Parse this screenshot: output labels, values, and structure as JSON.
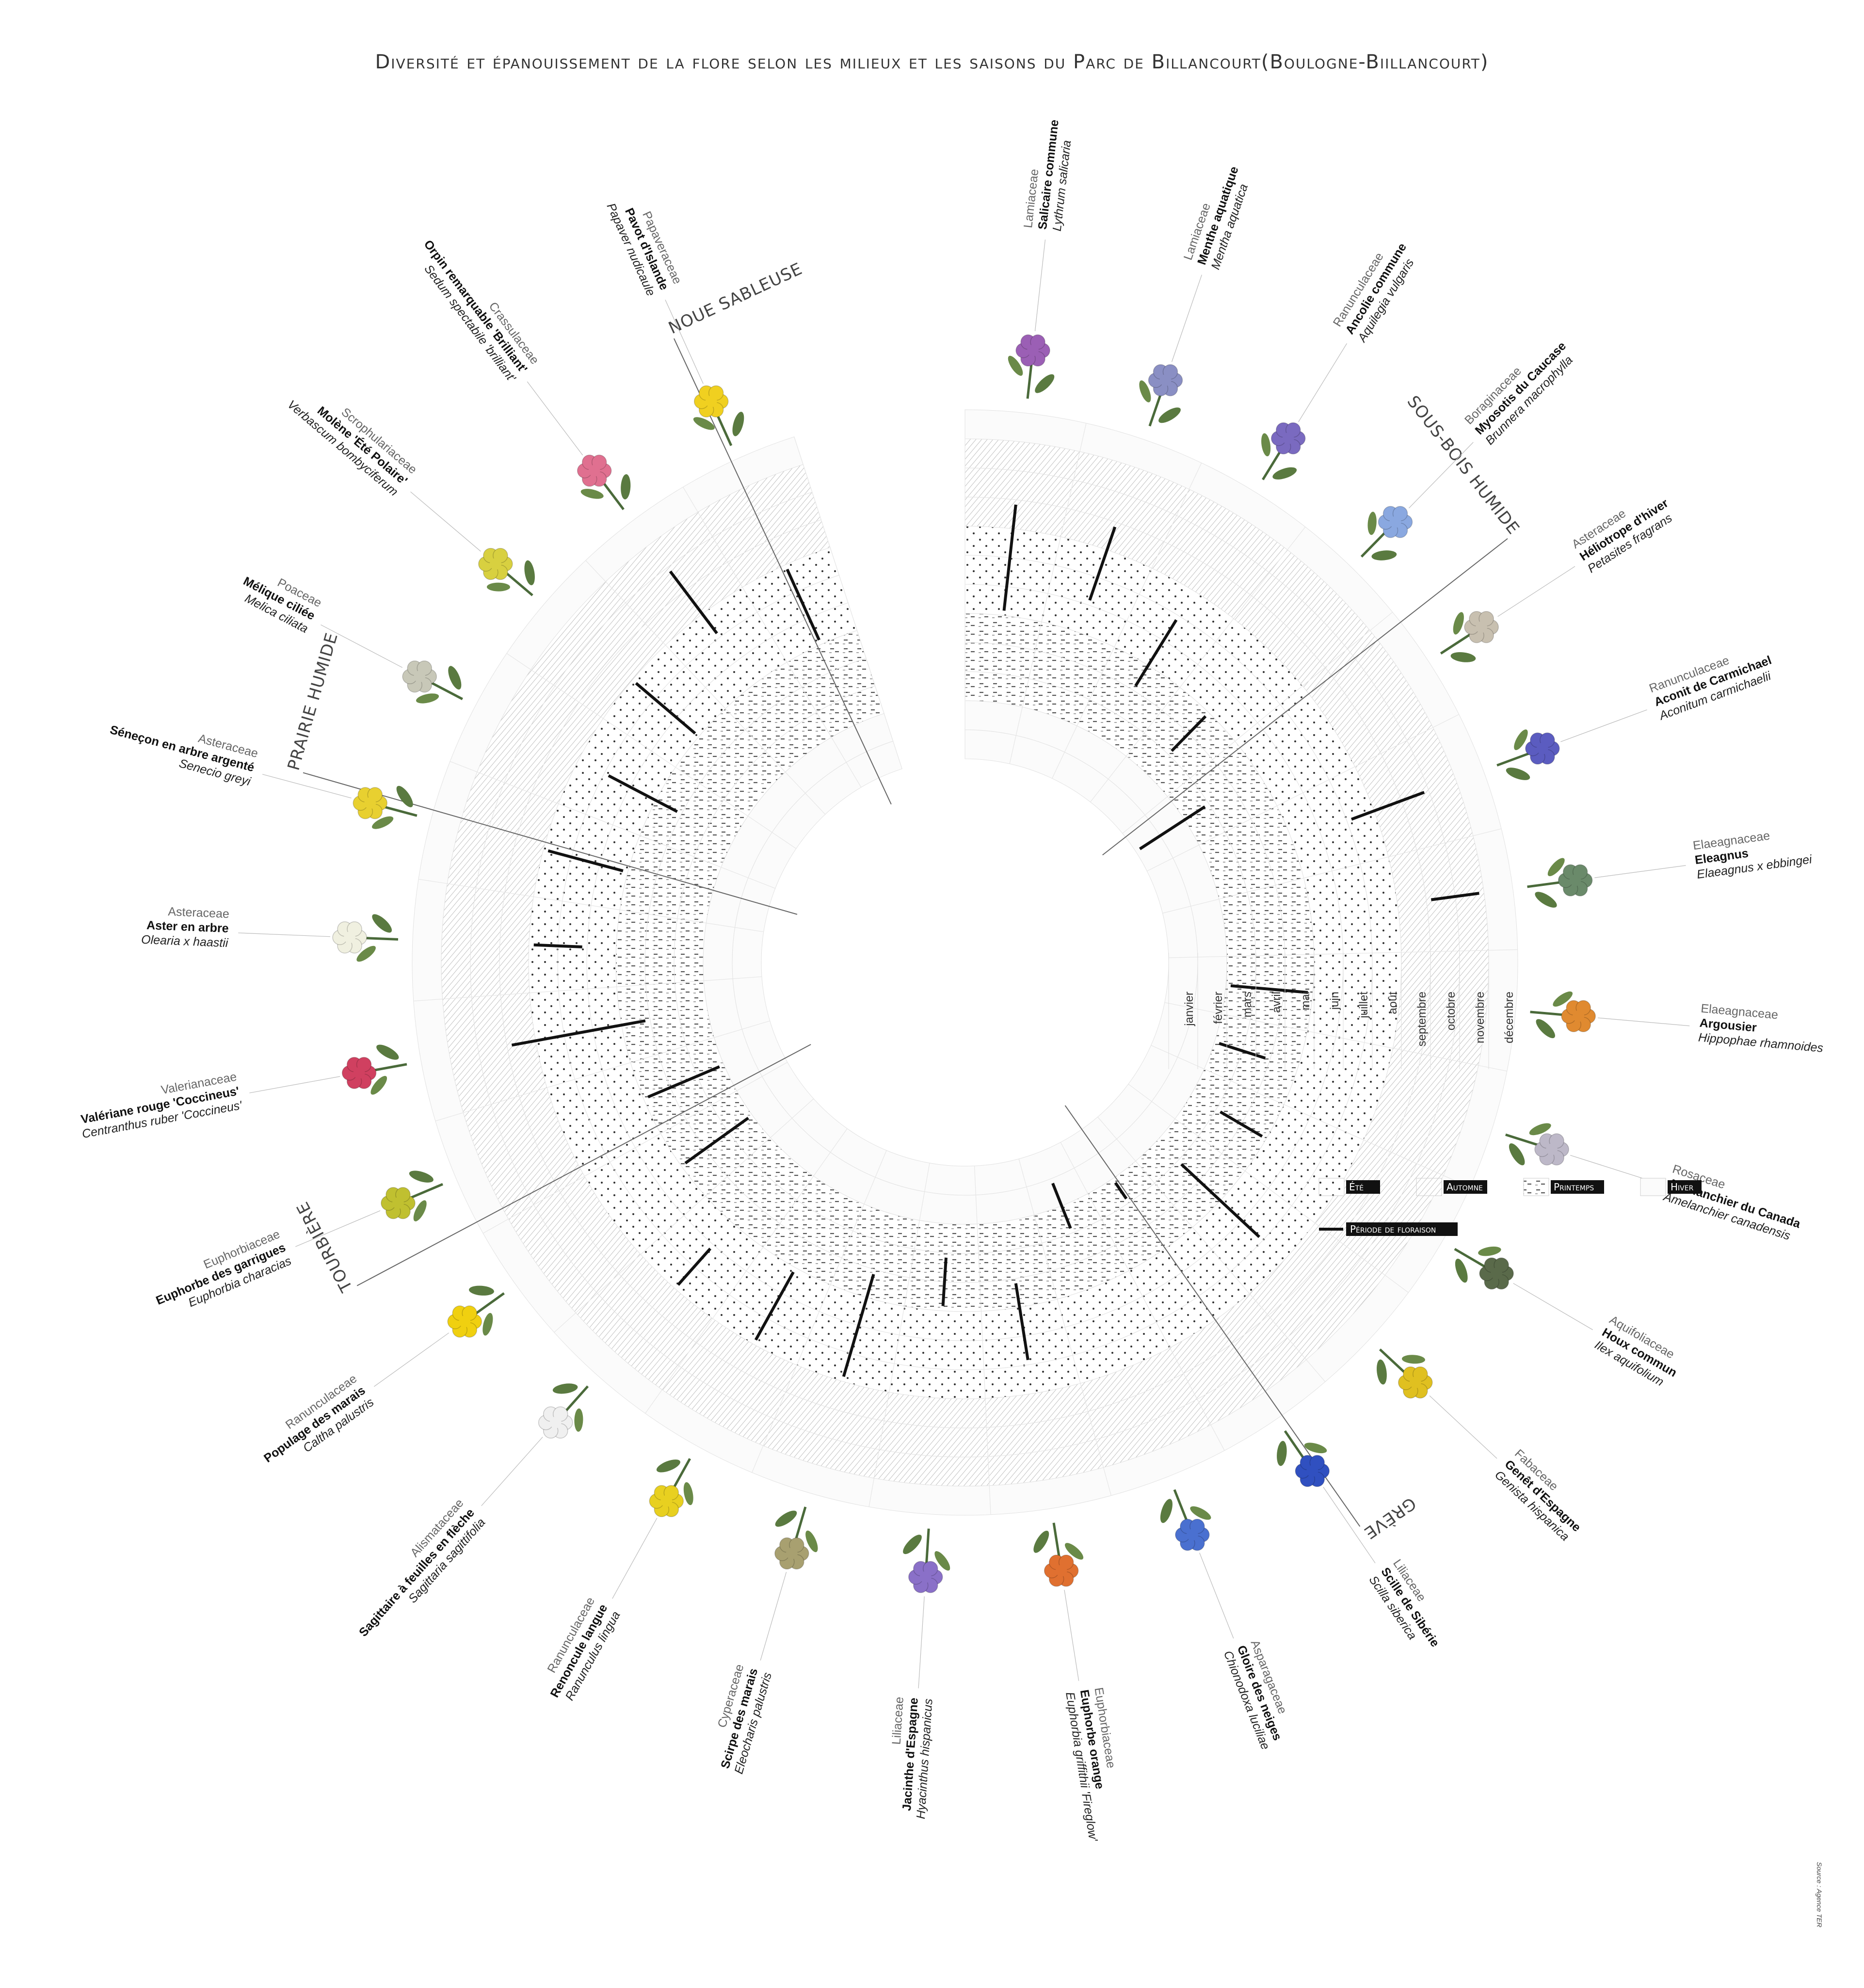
{
  "title": "Diversité et épanouissement de la flore selon les milieux et les saisons du  Parc de Billancourt(Boulogne-Biillancourt)",
  "source": "Source : Agence TER",
  "chart_data": {
    "type": "radial-flowering-calendar",
    "months": [
      "janvier",
      "février",
      "mars",
      "avril",
      "mai",
      "juin",
      "juillet",
      "août",
      "septembre",
      "octobre",
      "novembre",
      "décembre"
    ],
    "seasons": [
      {
        "name": "Hiver",
        "months": [
          1,
          2,
          12
        ]
      },
      {
        "name": "Printemps",
        "months": [
          3,
          4,
          5
        ]
      },
      {
        "name": "Été",
        "months": [
          6,
          7,
          8
        ]
      },
      {
        "name": "Automne",
        "months": [
          9,
          10,
          11
        ]
      }
    ],
    "zones": [
      "NOUE SABLEUSE",
      "SOUS-BOIS HUMIDE",
      "GRÈVE",
      "TOURBIÈRE",
      "PRAIRIE HUMIDE"
    ],
    "species": [
      {
        "family": "Lamiaceae",
        "common": "Salicaire commune",
        "scientific": "Lythrum salicaria",
        "color": "#9b5fb5",
        "flowering": [
          6,
          9
        ]
      },
      {
        "family": "Lamiaceae",
        "common": "Menthe aquatique",
        "scientific": "Mentha aquatica",
        "color": "#8a8fc4",
        "flowering": [
          7,
          9
        ]
      },
      {
        "family": "Ranunculaceae",
        "common": "Ancolie commune",
        "scientific": "Aquilegia vulgaris",
        "color": "#7a6ac0",
        "flowering": [
          5,
          7
        ]
      },
      {
        "family": "Boraginaceae",
        "common": "Myosotis du Caucase",
        "scientific": "Brunnera macrophylla",
        "color": "#8aa8e0",
        "flowering": [
          4,
          5
        ]
      },
      {
        "family": "Asteraceae",
        "common": "Héliotrope d'hiver",
        "scientific": "Petasites fragrans",
        "color": "#c8c0b0",
        "flowering": [
          1,
          3
        ]
      },
      {
        "family": "Ranunculaceae",
        "common": "Aconit de Carmichael",
        "scientific": "Aconitum carmichaelii",
        "color": "#5b5cc0",
        "flowering": [
          8,
          10
        ]
      },
      {
        "family": "Elaeagnaceae",
        "common": "Eleagnus",
        "scientific": "Elaeagnus x ebbingei",
        "color": "#6a8a6a",
        "flowering": [
          10,
          11
        ]
      },
      {
        "family": "Elaeagnaceae",
        "common": "Argousier",
        "scientific": "Hippophae rhamnoides",
        "color": "#e08a30",
        "flowering": [
          3,
          5
        ]
      },
      {
        "family": "Rosaceae",
        "common": "Amélanchier du Canada",
        "scientific": "Amelanchier canadensis",
        "color": "#bdb8c8",
        "flowering": [
          3,
          4
        ]
      },
      {
        "family": "Aquifoliaceae",
        "common": "Houx commun",
        "scientific": "Ilex aquifolium",
        "color": "#5a6a4a",
        "flowering": [
          4,
          5
        ]
      },
      {
        "family": "Fabaceae",
        "common": "Genêt d'Espagne",
        "scientific": "Genista hispanica",
        "color": "#e0c020",
        "flowering": [
          4,
          7
        ]
      },
      {
        "family": "Liliaceae",
        "common": "Scille de Sibérie",
        "scientific": "Scilla siberica",
        "color": "#3050c0",
        "flowering": [
          3,
          3
        ]
      },
      {
        "family": "Asparagaceae",
        "common": "Gloire des neiges",
        "scientific": "Chionodoxa luciliae",
        "color": "#4a70d0",
        "flowering": [
          2,
          3
        ]
      },
      {
        "family": "Euphorbiaceae",
        "common": "Euphorbe orange",
        "scientific": "Euphorbia griffithii 'Fireglow'",
        "color": "#e07030",
        "flowering": [
          5,
          7
        ]
      },
      {
        "family": "Liliaceae",
        "common": "Jacinthe d'Espagne",
        "scientific": "Hyacinthus hispanicus",
        "color": "#8a70c8",
        "flowering": [
          4,
          5
        ]
      },
      {
        "family": "Cyperaceae",
        "common": "Scirpe des marais",
        "scientific": "Eleocharis palustris",
        "color": "#a8a070",
        "flowering": [
          5,
          8
        ]
      },
      {
        "family": "Ranunculaceae",
        "common": "Renoncule langue",
        "scientific": "Ranunculus lingua",
        "color": "#e8d020",
        "flowering": [
          6,
          8
        ]
      },
      {
        "family": "Alismataceae",
        "common": "Sagittaire à feuilles en flèche",
        "scientific": "Sagittaria sagittifolia",
        "color": "#f0f0f0",
        "flowering": [
          7,
          8
        ]
      },
      {
        "family": "Ranunculaceae",
        "common": "Populage des marais",
        "scientific": "Caltha palustris",
        "color": "#f0d010",
        "flowering": [
          3,
          5
        ]
      },
      {
        "family": "Euphorbiaceae",
        "common": "Euphorbe des garrigues",
        "scientific": "Euphorbia characias",
        "color": "#c0c030",
        "flowering": [
          3,
          5
        ]
      },
      {
        "family": "Valerianaceae",
        "common": "Valériane rouge 'Coccineus'",
        "scientific": "Centranthus ruber 'Coccineus'",
        "color": "#d04060",
        "flowering": [
          5,
          9
        ]
      },
      {
        "family": "Asteraceae",
        "common": "Aster en arbre",
        "scientific": "Olearia x haastii",
        "color": "#f0f0e0",
        "flowering": [
          7,
          8
        ]
      },
      {
        "family": "Asteraceae",
        "common": "Séneçon en arbre argenté",
        "scientific": "Senecio greyi",
        "color": "#e8d030",
        "flowering": [
          6,
          8
        ]
      },
      {
        "family": "Poaceae",
        "common": "Mélique ciliée",
        "scientific": "Melica ciliata",
        "color": "#c8c8b8",
        "flowering": [
          5,
          7
        ]
      },
      {
        "family": "Scrophulariaceae",
        "common": "Molène 'Été Polaire'",
        "scientific": "Verbascum bombyciferum",
        "color": "#d8d040",
        "flowering": [
          6,
          8
        ]
      },
      {
        "family": "Crassulaceae",
        "common": "Orpin remarquable 'Brilliant'",
        "scientific": "Sedum spectabile 'brilliant'",
        "color": "#e07090",
        "flowering": [
          8,
          10
        ]
      },
      {
        "family": "Papaveraceae",
        "common": "Pavot d'Islande",
        "scientific": "Papaver nudicaule",
        "color": "#f0d020",
        "flowering": [
          6,
          8
        ]
      }
    ],
    "legend": [
      {
        "key": "ete",
        "label": "Été"
      },
      {
        "key": "automne",
        "label": "Automne"
      },
      {
        "key": "printemps",
        "label": "Printemps"
      },
      {
        "key": "hiver",
        "label": "Hiver"
      },
      {
        "key": "floraison",
        "label": "Période de floraison"
      }
    ]
  }
}
